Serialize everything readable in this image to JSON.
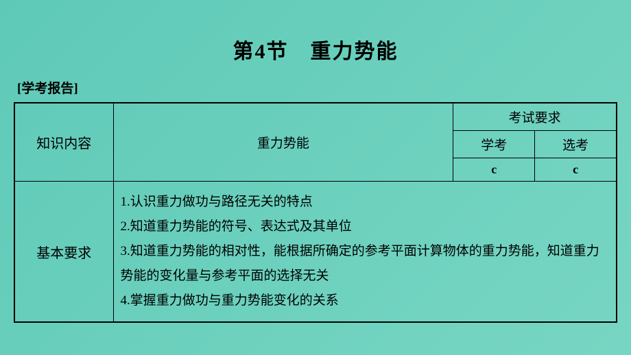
{
  "document": {
    "title": "第4节　重力势能",
    "subtitle": "[学考报告]",
    "background_gradient": [
      "#5fc9b8",
      "#6bd0bd",
      "#77d6c3"
    ],
    "text_color": "#000000",
    "border_color": "#000000"
  },
  "table": {
    "headers": {
      "knowledge": "知识内容",
      "topic": "重力势能",
      "exam_req": "考试要求",
      "xuekao": "学考",
      "xuankao": "选考",
      "xuekao_level": "c",
      "xuankao_level": "c"
    },
    "basic_req": {
      "label": "基本要求",
      "items": {
        "item1": "1.认识重力做功与路径无关的特点",
        "item2": "2.知道重力势能的符号、表达式及其单位",
        "item3": "3.知道重力势能的相对性，能根据所确定的参考平面计算物体的重力势能，知道重力势能的变化量与参考平面的选择无关",
        "item4": "4.掌握重力做功与重力势能变化的关系"
      }
    }
  },
  "styling": {
    "title_fontsize": 30,
    "subtitle_fontsize": 19,
    "cell_fontsize": 19,
    "border_width": 1.5,
    "outer_border_width": 2
  }
}
